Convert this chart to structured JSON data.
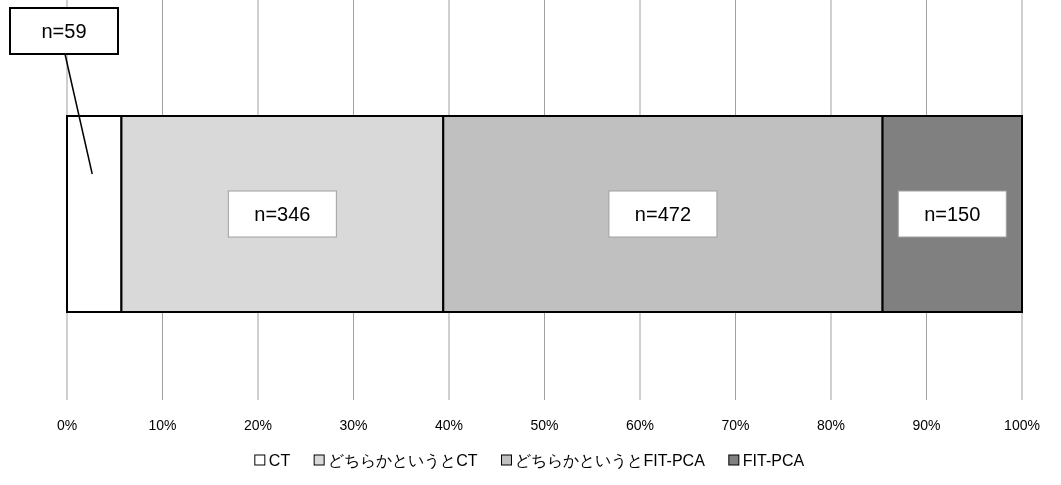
{
  "chart_data": {
    "type": "bar",
    "orientation": "horizontal",
    "stacked": true,
    "categories": [
      null
    ],
    "series": [
      {
        "name": "CT",
        "color": "#ffffff",
        "values": [
          5.7
        ]
      },
      {
        "name": "どちらかというとCT",
        "color": "#d9d9d9",
        "values": [
          33.7
        ]
      },
      {
        "name": "どちらかというとFIT-PCA",
        "color": "#c0c0c0",
        "values": [
          46.0
        ]
      },
      {
        "name": "FIT-PCA",
        "color": "#808080",
        "values": [
          14.6
        ]
      }
    ],
    "xlim": [
      0,
      100
    ],
    "xticks": [
      {
        "value": 0,
        "label": "0%"
      },
      {
        "value": 10,
        "label": "10%"
      },
      {
        "value": 20,
        "label": "20%"
      },
      {
        "value": 30,
        "label": "30%"
      },
      {
        "value": 40,
        "label": "40%"
      },
      {
        "value": 50,
        "label": "50%"
      },
      {
        "value": 60,
        "label": "60%"
      },
      {
        "value": 70,
        "label": "70%"
      },
      {
        "value": 80,
        "label": "80%"
      },
      {
        "value": 90,
        "label": "90%"
      },
      {
        "value": 100,
        "label": "100%"
      }
    ],
    "annotations": [
      "n=59",
      "n=346",
      "n=472",
      "n=150"
    ],
    "grid": "x",
    "legend": "bottom"
  }
}
